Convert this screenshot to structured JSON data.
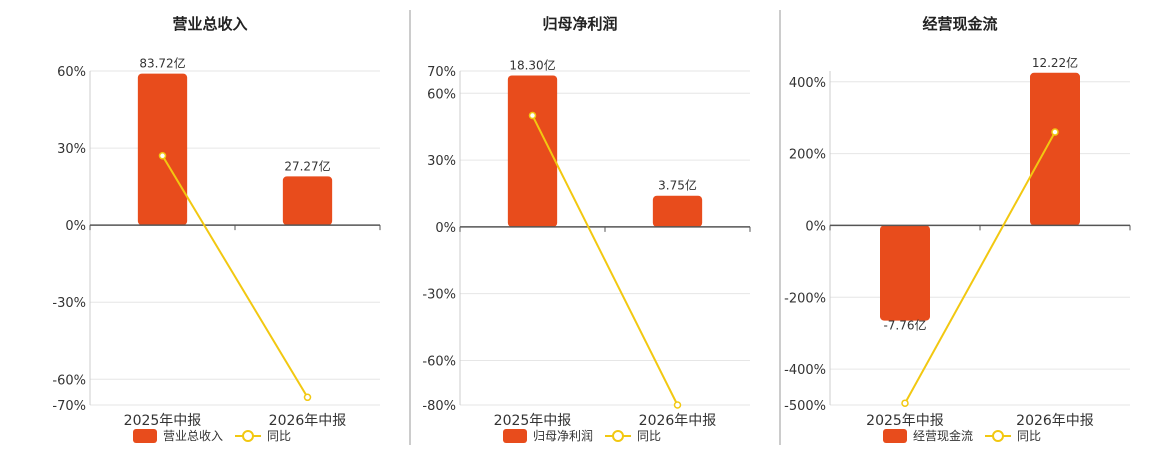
{
  "colors": {
    "bar": "#e84c1c",
    "line": "#f2c811",
    "grid": "#e6e6e6",
    "axis": "#555555",
    "divider": "#999999"
  },
  "chart_data": [
    {
      "type": "bar",
      "title": "营业总收入",
      "categories": [
        "2025年中报",
        "2026年中报"
      ],
      "series": [
        {
          "name": "营业总收入",
          "kind": "bar",
          "axis": "left",
          "values": [
            59,
            19
          ],
          "labels": [
            "83.72亿",
            "27.27亿"
          ]
        },
        {
          "name": "同比",
          "kind": "line",
          "axis": "left",
          "values": [
            27,
            -67
          ]
        }
      ],
      "ylim": [
        -70,
        60
      ],
      "yticks": [
        -70,
        -60,
        -30,
        0,
        30,
        60
      ],
      "ytick_labels": [
        "-70%",
        "-60%",
        "-30%",
        "0%",
        "30%",
        "60%"
      ],
      "grid": true,
      "legend": "bottom"
    },
    {
      "type": "bar",
      "title": "归母净利润",
      "categories": [
        "2025年中报",
        "2026年中报"
      ],
      "series": [
        {
          "name": "归母净利润",
          "kind": "bar",
          "axis": "left",
          "values": [
            68,
            14
          ],
          "labels": [
            "18.30亿",
            "3.75亿"
          ]
        },
        {
          "name": "同比",
          "kind": "line",
          "axis": "left",
          "values": [
            50,
            -80
          ]
        }
      ],
      "ylim": [
        -80,
        70
      ],
      "yticks": [
        -80,
        -60,
        -30,
        0,
        30,
        60,
        70
      ],
      "ytick_labels": [
        "-80%",
        "-60%",
        "-30%",
        "0%",
        "30%",
        "60%",
        "70%"
      ],
      "grid": true,
      "legend": "bottom"
    },
    {
      "type": "bar",
      "title": "经营现金流",
      "categories": [
        "2025年中报",
        "2026年中报"
      ],
      "series": [
        {
          "name": "经营现金流",
          "kind": "bar",
          "axis": "left",
          "values": [
            -265,
            425
          ],
          "labels": [
            "-7.76亿",
            "12.22亿"
          ]
        },
        {
          "name": "同比",
          "kind": "line",
          "axis": "left",
          "values": [
            -495,
            260
          ]
        }
      ],
      "ylim": [
        -500,
        430
      ],
      "yticks": [
        -500,
        -400,
        -200,
        0,
        200,
        400
      ],
      "ytick_labels": [
        "-500%",
        "-400%",
        "-200%",
        "0%",
        "200%",
        "400%"
      ],
      "grid": true,
      "legend": "bottom"
    }
  ]
}
